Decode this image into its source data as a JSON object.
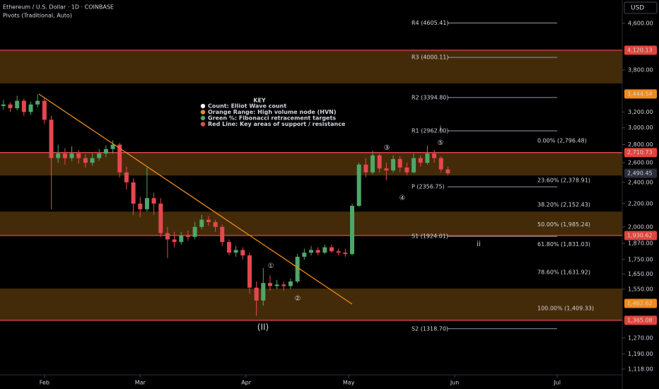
{
  "chart_data": {
    "type": "candlestick",
    "title": "Ethereum / U.S. Dollar · 1D · COINBASE",
    "subtitle": "Pivots (Traditional, Auto)",
    "currency": "USD",
    "log_scale": true,
    "up_color": "#4fa66a",
    "down_color": "#e5474f",
    "ylim": [
      1092,
      5059
    ],
    "yticks": [
      {
        "value": 4600,
        "label": "4,600.00"
      },
      {
        "value": 3800,
        "label": "3,800.00"
      },
      {
        "value": 3200,
        "label": "3,200.00"
      },
      {
        "value": 3000,
        "label": "3,000.00"
      },
      {
        "value": 2800,
        "label": "2,800.00"
      },
      {
        "value": 2600,
        "label": "2,600.00"
      },
      {
        "value": 2400,
        "label": "2,400.00"
      },
      {
        "value": 2200,
        "label": "2,200.00"
      },
      {
        "value": 2000,
        "label": "2,000.00"
      },
      {
        "value": 1870,
        "label": "1,870.00"
      },
      {
        "value": 1750,
        "label": "1,750.00"
      },
      {
        "value": 1650,
        "label": "1,650.00"
      },
      {
        "value": 1550,
        "label": "1,550.00"
      },
      {
        "value": 1270,
        "label": "1,270.00"
      },
      {
        "value": 1190,
        "label": "1,190.00"
      },
      {
        "value": 1118,
        "label": "1,118.00"
      }
    ],
    "xlim": [
      -0.5,
      90.5
    ],
    "xticks": [
      {
        "value": 6,
        "label": "Feb"
      },
      {
        "value": 20,
        "label": "Mar"
      },
      {
        "value": 35.5,
        "label": "Apr"
      },
      {
        "value": 50.5,
        "label": "May"
      },
      {
        "value": 66,
        "label": "Jun"
      },
      {
        "value": 81,
        "label": "Jul"
      }
    ],
    "open": [
      3280,
      3300,
      3250,
      3350,
      3200,
      3300,
      3350,
      3100,
      2650,
      2700,
      2650,
      2700,
      2650,
      2600,
      2650,
      2700,
      2750,
      2800,
      2500,
      2400,
      2200,
      2150,
      2250,
      2200,
      1950,
      1900,
      1880,
      1930,
      1920,
      2000,
      2060,
      2040,
      2000,
      1880,
      1800,
      1820,
      1780,
      1560,
      1480,
      1590,
      1570,
      1580,
      1570,
      1600,
      1770,
      1800,
      1820,
      1800,
      1840,
      1810,
      1800,
      1790,
      2180,
      2580,
      2500,
      2680,
      2540,
      2520,
      2640,
      2550,
      2500,
      2650,
      2600,
      2700,
      2650,
      2530
    ],
    "high": [
      3360,
      3330,
      3420,
      3380,
      3340,
      3440,
      3400,
      3150,
      2800,
      2760,
      2780,
      2740,
      2690,
      2700,
      2750,
      2790,
      2850,
      2820,
      2560,
      2440,
      2260,
      2550,
      2300,
      2250,
      2000,
      1960,
      1960,
      1970,
      2040,
      2100,
      2090,
      2060,
      2020,
      1900,
      1850,
      1840,
      1800,
      1600,
      1690,
      1640,
      1610,
      1600,
      1620,
      1790,
      1830,
      1850,
      1840,
      1860,
      1860,
      1830,
      1830,
      2200,
      2600,
      2650,
      2730,
      2700,
      2600,
      2680,
      2670,
      2600,
      2700,
      2680,
      2790,
      2740,
      2670,
      2560
    ],
    "low": [
      3230,
      3200,
      3220,
      3150,
      3160,
      3260,
      3050,
      2150,
      2600,
      2580,
      2620,
      2590,
      2550,
      2570,
      2620,
      2660,
      2700,
      2450,
      2330,
      2100,
      2080,
      2130,
      2100,
      1920,
      1760,
      1840,
      1860,
      1890,
      1900,
      1980,
      2010,
      1960,
      1850,
      1780,
      1770,
      1750,
      1520,
      1390,
      1450,
      1540,
      1550,
      1540,
      1550,
      1590,
      1750,
      1780,
      1780,
      1790,
      1800,
      1780,
      1770,
      1780,
      2170,
      2450,
      2480,
      2500,
      2420,
      2500,
      2500,
      2470,
      2490,
      2560,
      2580,
      2600,
      2500,
      2470
    ],
    "close": [
      3300,
      3250,
      3350,
      3200,
      3300,
      3350,
      3100,
      2650,
      2700,
      2650,
      2700,
      2650,
      2600,
      2650,
      2700,
      2750,
      2800,
      2500,
      2400,
      2200,
      2150,
      2250,
      2200,
      1950,
      1900,
      1880,
      1930,
      1920,
      2000,
      2060,
      2040,
      2000,
      1880,
      1800,
      1820,
      1780,
      1560,
      1480,
      1590,
      1570,
      1580,
      1570,
      1600,
      1770,
      1800,
      1820,
      1800,
      1840,
      1810,
      1800,
      1790,
      2180,
      2580,
      2500,
      2680,
      2540,
      2520,
      2640,
      2550,
      2500,
      2650,
      2600,
      2700,
      2650,
      2530,
      2490
    ],
    "zones": [
      [
        3596,
        4120.13
      ],
      [
        2468,
        2710.73
      ],
      [
        2129,
        1930.62
      ],
      [
        1554,
        1365.08
      ]
    ],
    "zone_color": "#5a3a0c",
    "support_lines": [
      4120.13,
      2710.73,
      1930.62,
      1365.08
    ],
    "support_color": "#e5474f",
    "pivots": [
      {
        "value": 4605.41,
        "label": "R4 (4605.41)"
      },
      {
        "value": 4000.11,
        "label": "R3 (4000.11)"
      },
      {
        "value": 3394.8,
        "label": "R2 (3394.80)"
      },
      {
        "value": 2962,
        "label": "R1 (2962.00)"
      },
      {
        "value": 2356.75,
        "label": "P (2356.75)"
      },
      {
        "value": 1924.01,
        "label": "S1 (1924.01)"
      },
      {
        "value": 1318.7,
        "label": "S2 (1318.70)"
      }
    ],
    "fibs": [
      {
        "value": 2796.48,
        "label": "0.00% (2,796.48)"
      },
      {
        "value": 2378.91,
        "label": "23.60% (2,378.91)"
      },
      {
        "value": 2152.43,
        "label": "38.20% (2,152.43)"
      },
      {
        "value": 1985.24,
        "label": "50.00% (1,985.24)"
      },
      {
        "value": 1831.03,
        "label": "61.80% (1,831.03)"
      },
      {
        "value": 1631.92,
        "label": "78.60% (1,631.92)"
      },
      {
        "value": 1409.33,
        "label": "100.00% (1,409.33)"
      }
    ],
    "fib_color": "#3f7d3a",
    "price_labels": [
      {
        "value": 4120.13,
        "label": "4,120.13",
        "color": "#e0453b"
      },
      {
        "value": 3444.54,
        "label": "3,444.54",
        "color": "#f08a1c"
      },
      {
        "value": 2710.73,
        "label": "2,710.73",
        "color": "#e0453b"
      },
      {
        "value": 2490.45,
        "label": "2,490.45",
        "color": "#2a2e39"
      },
      {
        "value": 1930.62,
        "label": "1,930.62",
        "color": "#e0453b"
      },
      {
        "value": 1462.62,
        "label": "1,462.62",
        "color": "#f08a1c"
      },
      {
        "value": 1365.08,
        "label": "1,365.08",
        "color": "#e0453b"
      }
    ],
    "annotations": [
      "①",
      "②",
      "③",
      "④",
      "⑤",
      "(II)",
      "i",
      "ii"
    ],
    "key": {
      "title": "KEY",
      "items": [
        {
          "text": "Count: Elliot Wave count",
          "color": "#f0f0f0"
        },
        {
          "text": "Orange Range: High volume node (HVN)",
          "color": "#f08a1c"
        },
        {
          "text": "Green %: Fibonacci retracement targets",
          "color": "#4fa66a"
        },
        {
          "text": "Red Line: Key areas of support / resistance",
          "color": "#e5474f"
        }
      ]
    }
  }
}
